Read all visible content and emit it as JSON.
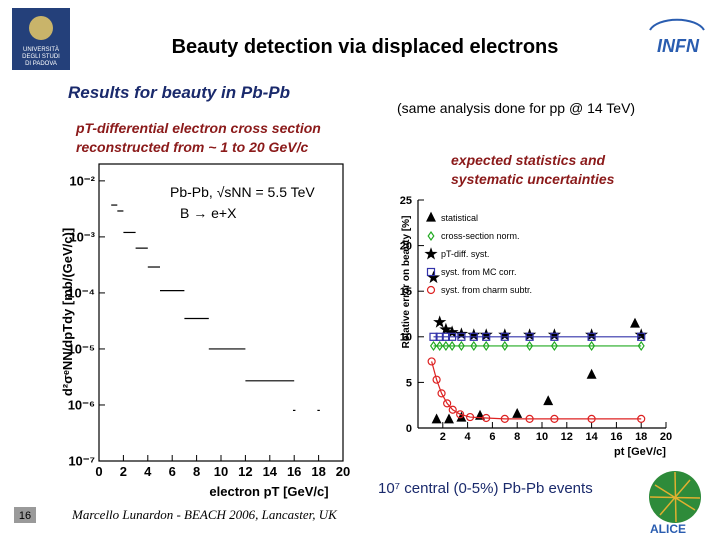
{
  "slide": {
    "title": "Beauty detection via displaced electrons",
    "subtitle": "Results for beauty in Pb-Pb",
    "note": "(same analysis done for pp @ 14 TeV)",
    "left_caption": [
      "pT-differential electron cross section",
      "reconstructed from ~ 1 to 20 GeV/c"
    ],
    "right_caption": [
      "expected statistics and",
      "systematic uncertainties"
    ],
    "events": "10⁷ central (0-5%) Pb-Pb events",
    "footer": "Marcello Lunardon - BEACH 2006, Lancaster, UK",
    "page": "16",
    "logos": {
      "university": [
        "UNIVERSITÀ",
        "DEGLI STUDI",
        "DI PADOVA"
      ],
      "institute": "INFN",
      "experiment": "ALICE"
    }
  },
  "chart_data": [
    {
      "type": "scatter",
      "log_y": true,
      "xlabel": "electron pT [GeV/c]",
      "ylabel": "d²σᵉNN/dpTdy [mb/(GeV/c)]",
      "annotations": [
        "Pb-Pb, √sNN = 5.5 TeV",
        "B → e+X"
      ],
      "xlim": [
        0,
        20
      ],
      "ylim": [
        1e-07,
        0.02
      ],
      "xticks": [
        0,
        2,
        4,
        6,
        8,
        10,
        12,
        14,
        16,
        18,
        20
      ],
      "yticks": [
        {
          "value": 1e-07,
          "label": "10⁻⁷"
        },
        {
          "value": 1e-06,
          "label": "10⁻⁶"
        },
        {
          "value": 1e-05,
          "label": "10⁻⁵"
        },
        {
          "value": 0.0001,
          "label": "10⁻⁴"
        },
        {
          "value": 0.001,
          "label": "10⁻³"
        },
        {
          "value": 0.01,
          "label": "10⁻²"
        }
      ],
      "series": [
        {
          "color": "#000000",
          "x": [
            1.25,
            1.75,
            2.5,
            3.5,
            4.5,
            6,
            8,
            10.5,
            14,
            16,
            18
          ],
          "xerr": [
            0.25,
            0.25,
            0.5,
            0.5,
            0.5,
            1,
            1,
            1.5,
            2,
            0.1,
            0.1
          ],
          "values": [
            0.0037,
            0.0029,
            0.0012,
            0.00063,
            0.00029,
            0.00011,
            3.5e-05,
            1e-05,
            2.7e-06,
            8e-07,
            8e-07
          ]
        }
      ]
    },
    {
      "type": "line",
      "xlabel": "pt [GeV/c]",
      "ylabel": "Relative error on beauty [%]",
      "xlim": [
        0,
        20
      ],
      "ylim": [
        0,
        25
      ],
      "xticks": [
        2,
        4,
        6,
        8,
        10,
        12,
        14,
        16,
        18,
        20
      ],
      "yticks": [
        0,
        5,
        10,
        15,
        20,
        25
      ],
      "legend": "upper right",
      "series": [
        {
          "name": "statistical",
          "color": "#000000",
          "marker": "triangle",
          "filled": true,
          "line": false,
          "x": [
            1.5,
            2.5,
            3.5,
            5,
            8,
            10.5,
            14,
            17.5
          ],
          "values": [
            0.9,
            0.9,
            1.1,
            1.3,
            1.5,
            2.9,
            5.8,
            11.4
          ]
        },
        {
          "name": "cross-section norm.",
          "color": "#22aa22",
          "marker": "diamond",
          "filled": false,
          "line": true,
          "x": [
            1.25,
            1.75,
            2.25,
            2.75,
            3.5,
            4.5,
            5.5,
            7,
            9,
            11,
            14,
            18
          ],
          "values": [
            9,
            9,
            9,
            9,
            9,
            9,
            9,
            9,
            9,
            9,
            9,
            9
          ]
        },
        {
          "name": "pT-diff. syst.",
          "color": "#000000",
          "marker": "star",
          "filled": true,
          "line": false,
          "x": [
            1.25,
            1.75,
            2.25,
            2.75,
            3.5,
            4.5,
            5.5,
            7,
            9,
            11,
            14,
            18
          ],
          "values": [
            16.5,
            11.6,
            10.8,
            10.5,
            10.3,
            10.2,
            10.2,
            10.2,
            10.2,
            10.2,
            10.2,
            10.2
          ]
        },
        {
          "name": "syst. from MC corr.",
          "color": "#3333aa",
          "marker": "square",
          "filled": false,
          "line": true,
          "x": [
            1.25,
            1.75,
            2.25,
            2.75,
            3.5,
            4.5,
            5.5,
            7,
            9,
            11,
            14,
            18
          ],
          "values": [
            10,
            10,
            10,
            10,
            10,
            10,
            10,
            10,
            10,
            10,
            10,
            10
          ]
        },
        {
          "name": "syst. from charm subtr.",
          "color": "#dd2222",
          "marker": "circle",
          "filled": false,
          "line": true,
          "x": [
            1.1,
            1.5,
            1.9,
            2.35,
            2.8,
            3.4,
            4.2,
            5.5,
            7,
            9,
            11,
            14,
            18
          ],
          "values": [
            7.3,
            5.3,
            3.8,
            2.7,
            2,
            1.5,
            1.2,
            1.1,
            1,
            1,
            1,
            1,
            1
          ]
        }
      ]
    }
  ]
}
